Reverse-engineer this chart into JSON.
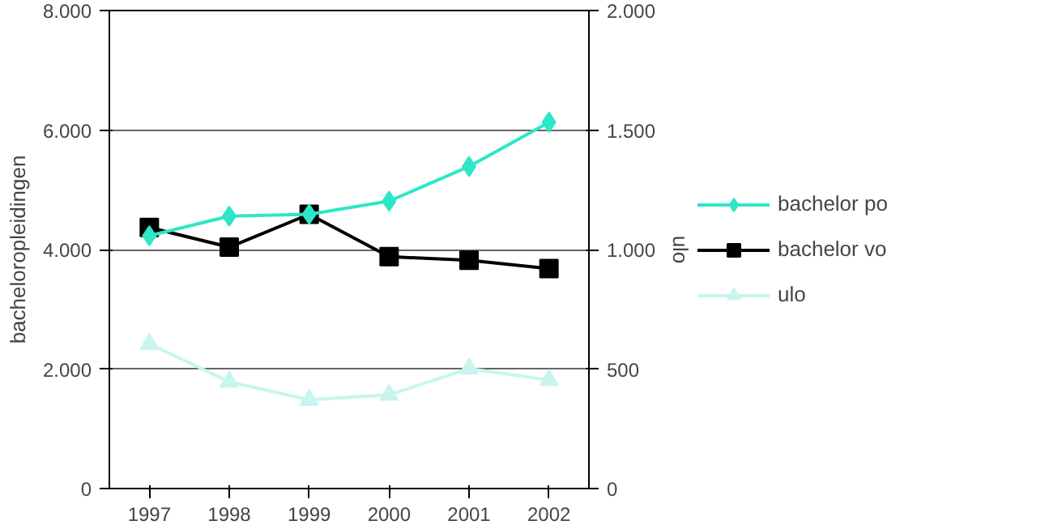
{
  "chart_data": {
    "type": "line",
    "categories": [
      "1997",
      "1998",
      "1999",
      "2000",
      "2001",
      "2002"
    ],
    "ylabel": "bacheloropleidingen",
    "y2label": "ulo",
    "ylim": [
      0,
      8000
    ],
    "yticks": [
      {
        "value": 0,
        "label": "0"
      },
      {
        "value": 2000,
        "label": "2.000"
      },
      {
        "value": 4000,
        "label": "4.000"
      },
      {
        "value": 6000,
        "label": "6.000"
      },
      {
        "value": 8000,
        "label": "8.000"
      }
    ],
    "y2lim": [
      0,
      2000
    ],
    "y2ticks": [
      {
        "value": 0,
        "label": "0"
      },
      {
        "value": 500,
        "label": "500"
      },
      {
        "value": 1000,
        "label": "1.000"
      },
      {
        "value": 1500,
        "label": "1.500"
      },
      {
        "value": 2000,
        "label": "2.000"
      }
    ],
    "grid": "y",
    "legend": "right",
    "line_style": "solid",
    "series": [
      {
        "name": "bachelor po",
        "color": "#2ee6c8",
        "marker": "diamond",
        "values": [
          4230,
          4560,
          4590,
          4810,
          5390,
          6130
        ]
      },
      {
        "name": "bachelor vo",
        "color": "#000000",
        "marker": "square",
        "values": [
          4370,
          4040,
          4590,
          3880,
          3820,
          3680
        ]
      },
      {
        "name": "ulo",
        "color": "#c8f5ee",
        "marker": "triangle",
        "axis": "y2",
        "values": [
          605,
          447,
          371,
          392,
          502,
          454
        ]
      }
    ]
  }
}
